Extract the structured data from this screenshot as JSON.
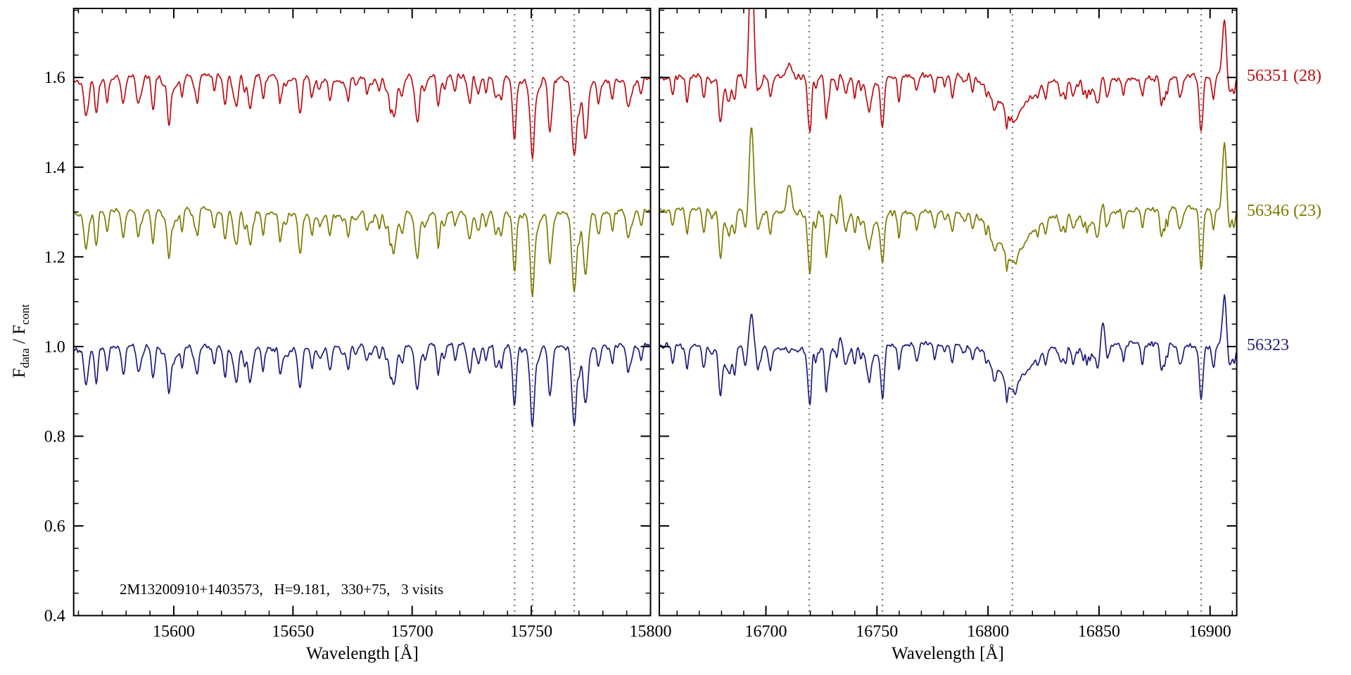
{
  "chart_data": {
    "type": "line",
    "title": "",
    "xlabel": "Wavelength [Å]",
    "ylabel": "F_data / F_cont",
    "ylabel_parts": {
      "f1": "F",
      "s1": "data",
      "mid": " / F",
      "s2": "cont"
    },
    "annotation": "2M13200910+1403573,   H=9.181,   330+75,   3 visits",
    "ylim": [
      0.4,
      1.754
    ],
    "yticks": [
      0.4,
      0.6,
      0.8,
      1.0,
      1.2,
      1.4,
      1.6
    ],
    "y_minor_step": 0.05,
    "sample_step": 0.35,
    "grid": false,
    "legend_position": "right-outside",
    "dashed_color": "#777777",
    "series": [
      {
        "label": "56351 (28)",
        "color": "#bb0e14",
        "offset": 1.6,
        "noise_seed": 101,
        "noise_sigma": 0.0068
      },
      {
        "label": "56346 (23)",
        "color": "#7d7a00",
        "offset": 1.3,
        "noise_seed": 202,
        "noise_sigma": 0.0062
      },
      {
        "label": "56323",
        "color": "#1d1d7e",
        "offset": 1.0,
        "noise_seed": 303,
        "noise_sigma": 0.006
      }
    ],
    "panels": [
      {
        "name": "blue-chip",
        "xlabel": "Wavelength [Å]",
        "xlim": [
          15558,
          15800
        ],
        "xticks": [
          15600,
          15650,
          15700,
          15750,
          15800
        ],
        "x_minor_step": 10,
        "dashed_lines": [
          15743,
          15750.5,
          15768
        ],
        "weak_line_seed": 7,
        "weak_line_count": 55,
        "lines": [
          {
            "c": 15563.0,
            "d": 0.055,
            "w": 0.7
          },
          {
            "c": 15567.5,
            "d": 0.075,
            "w": 0.7
          },
          {
            "c": 15572.0,
            "d": 0.05,
            "w": 0.6
          },
          {
            "c": 15578.5,
            "d": 0.04,
            "w": 0.6
          },
          {
            "c": 15585.0,
            "d": 0.05,
            "w": 0.7
          },
          {
            "c": 15591.0,
            "d": 0.04,
            "w": 0.6
          },
          {
            "c": 15598.0,
            "d": 0.105,
            "w": 0.8
          },
          {
            "c": 15603.5,
            "d": 0.045,
            "w": 0.6
          },
          {
            "c": 15610.0,
            "d": 0.04,
            "w": 0.6
          },
          {
            "c": 15617.0,
            "d": 0.035,
            "w": 0.6
          },
          {
            "c": 15621.5,
            "d": 0.065,
            "w": 0.7
          },
          {
            "c": 15626.5,
            "d": 0.06,
            "w": 0.7
          },
          {
            "c": 15632.0,
            "d": 0.075,
            "w": 0.8
          },
          {
            "c": 15637.5,
            "d": 0.05,
            "w": 0.6
          },
          {
            "c": 15645.0,
            "d": 0.04,
            "w": 0.6
          },
          {
            "c": 15653.0,
            "d": 0.085,
            "w": 0.8
          },
          {
            "c": 15658.0,
            "d": 0.045,
            "w": 0.6
          },
          {
            "c": 15665.5,
            "d": 0.05,
            "w": 0.7
          },
          {
            "c": 15673.0,
            "d": 0.045,
            "w": 0.6
          },
          {
            "c": 15681.0,
            "d": 0.035,
            "w": 0.6
          },
          {
            "c": 15689.0,
            "d": 0.03,
            "w": 0.6
          },
          {
            "c": 15696.0,
            "d": 0.035,
            "w": 0.6
          },
          {
            "c": 15702.5,
            "d": 0.04,
            "w": 0.7
          },
          {
            "c": 15711.0,
            "d": 0.05,
            "w": 0.7
          },
          {
            "c": 15718.0,
            "d": 0.035,
            "w": 0.6
          },
          {
            "c": 15724.5,
            "d": 0.04,
            "w": 0.6
          },
          {
            "c": 15731.0,
            "d": 0.035,
            "w": 0.6
          },
          {
            "c": 15737.5,
            "d": 0.04,
            "w": 0.6
          },
          {
            "c": 15743.0,
            "d": 0.1,
            "w": 0.8
          },
          {
            "c": 15750.5,
            "d": 0.13,
            "w": 0.9
          },
          {
            "c": 15757.5,
            "d": 0.05,
            "w": 0.6
          },
          {
            "c": 15768.0,
            "d": 0.17,
            "w": 1.0
          },
          {
            "c": 15772.5,
            "d": 0.11,
            "w": 0.9
          },
          {
            "c": 15778.0,
            "d": 0.045,
            "w": 0.6
          },
          {
            "c": 15784.0,
            "d": 0.04,
            "w": 0.6
          },
          {
            "c": 15790.5,
            "d": 0.05,
            "w": 0.7
          },
          {
            "c": 15796.0,
            "d": 0.035,
            "w": 0.6
          }
        ]
      },
      {
        "name": "red-chip",
        "xlabel": "Wavelength [Å]",
        "xlim": [
          16652,
          16912
        ],
        "xticks": [
          16700,
          16750,
          16800,
          16850,
          16900
        ],
        "x_minor_step": 10,
        "dashed_lines": [
          16719.5,
          16752.5,
          16811,
          16896
        ],
        "weak_line_seed": 13,
        "weak_line_count": 55,
        "lines": [
          {
            "c": 16658.0,
            "d": 0.04,
            "w": 0.6
          },
          {
            "c": 16664.5,
            "d": 0.045,
            "w": 0.7
          },
          {
            "c": 16672.0,
            "d": 0.05,
            "w": 0.7
          },
          {
            "c": 16679.5,
            "d": 0.095,
            "w": 0.8
          },
          {
            "c": 16686.0,
            "d": 0.04,
            "w": 0.6
          },
          {
            "c": 16693.5,
            "d": [
              -0.28,
              -0.19,
              -0.075
            ],
            "w": 0.9
          },
          {
            "c": 16702.0,
            "d": 0.05,
            "w": 0.7
          },
          {
            "c": 16710.5,
            "d": [
              -0.055,
              -0.095,
              -0.025
            ],
            "w": 1.0
          },
          {
            "c": 16719.5,
            "d": 0.105,
            "w": 0.8
          },
          {
            "c": 16727.0,
            "d": 0.05,
            "w": 0.6
          },
          {
            "c": 16733.5,
            "d": [
              -0.02,
              -0.05,
              -0.035
            ],
            "w": 0.9
          },
          {
            "c": 16740.0,
            "d": 0.04,
            "w": 0.6
          },
          {
            "c": 16746.5,
            "d": 0.035,
            "w": 0.6
          },
          {
            "c": 16752.5,
            "d": 0.115,
            "w": 0.8
          },
          {
            "c": 16760.0,
            "d": 0.045,
            "w": 0.6
          },
          {
            "c": 16768.0,
            "d": 0.04,
            "w": 0.6
          },
          {
            "c": 16776.0,
            "d": 0.035,
            "w": 0.6
          },
          {
            "c": 16784.0,
            "d": 0.03,
            "w": 0.6
          },
          {
            "c": 16793.0,
            "d": 0.03,
            "w": 0.6
          },
          {
            "c": 16811.0,
            "d": [
              0.075,
              0.088,
              0.078
            ],
            "w": 7.5
          },
          {
            "c": 16811.0,
            "d": 0.02,
            "w": 2.0
          },
          {
            "c": 16826.0,
            "d": 0.03,
            "w": 0.6
          },
          {
            "c": 16835.0,
            "d": 0.035,
            "w": 0.6
          },
          {
            "c": 16843.0,
            "d": 0.03,
            "w": 0.6
          },
          {
            "c": 16852.0,
            "d": [
              -0.02,
              -0.03,
              -0.065
            ],
            "w": 0.9
          },
          {
            "c": 16861.0,
            "d": 0.035,
            "w": 0.6
          },
          {
            "c": 16869.5,
            "d": 0.04,
            "w": 0.6
          },
          {
            "c": 16878.0,
            "d": 0.035,
            "w": 0.6
          },
          {
            "c": 16886.0,
            "d": 0.03,
            "w": 0.6
          },
          {
            "c": 16896.0,
            "d": 0.125,
            "w": 0.8
          },
          {
            "c": 16901.5,
            "d": 0.05,
            "w": 0.6
          },
          {
            "c": 16906.5,
            "d": [
              -0.13,
              -0.15,
              -0.115
            ],
            "w": 0.9
          }
        ]
      }
    ]
  }
}
